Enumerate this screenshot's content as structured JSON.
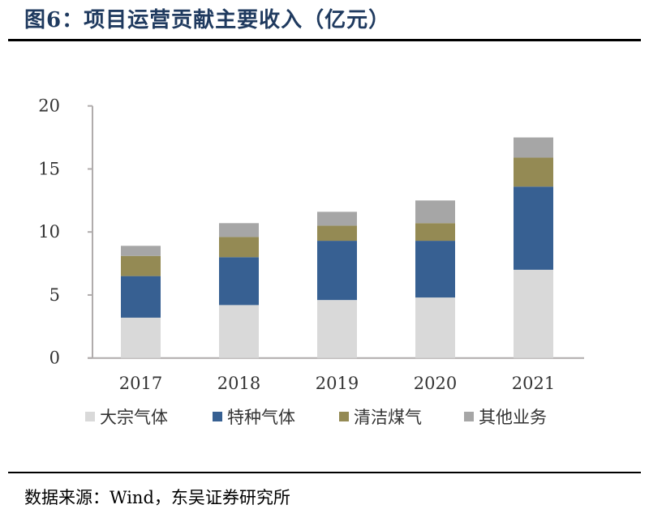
{
  "title": "图6：项目运营贡献主要收入（亿元）",
  "source": "数据来源：Wind，东吴证券研究所",
  "chart_data": {
    "type": "bar",
    "stacked": true,
    "categories": [
      "2017",
      "2018",
      "2019",
      "2020",
      "2021"
    ],
    "series": [
      {
        "name": "大宗气体",
        "color": "#d9d9d9",
        "values": [
          3.2,
          4.2,
          4.6,
          4.8,
          7.0
        ]
      },
      {
        "name": "特种气体",
        "color": "#376092",
        "values": [
          3.3,
          3.8,
          4.7,
          4.5,
          6.6
        ]
      },
      {
        "name": "清洁煤气",
        "color": "#948a54",
        "values": [
          1.6,
          1.6,
          1.2,
          1.4,
          2.3
        ]
      },
      {
        "name": "其他业务",
        "color": "#a6a6a6",
        "values": [
          0.8,
          1.1,
          1.1,
          1.8,
          1.6
        ]
      }
    ],
    "yticks": [
      "0",
      "5",
      "10",
      "15",
      "20"
    ],
    "ylim": [
      0,
      20
    ],
    "grid": false,
    "legend": "bottom"
  }
}
